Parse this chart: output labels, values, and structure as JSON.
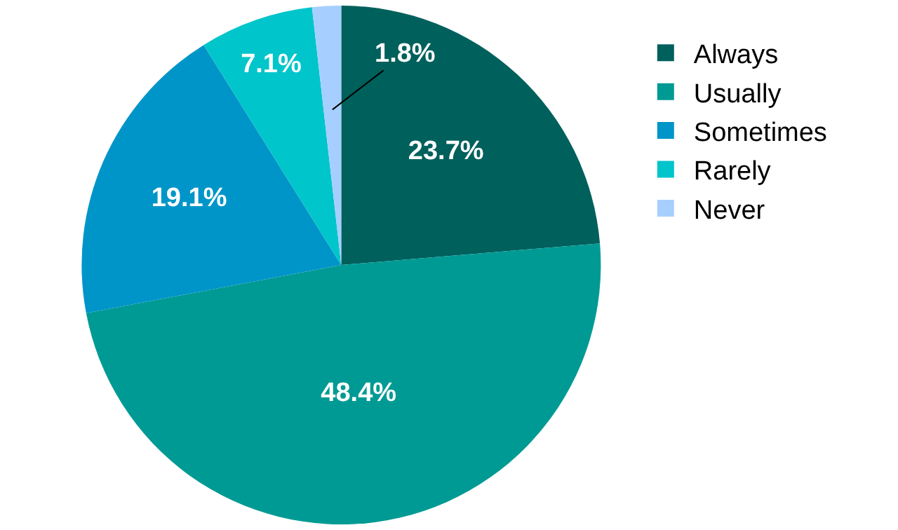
{
  "chart_data": {
    "type": "pie",
    "categories": [
      "Always",
      "Usually",
      "Sometimes",
      "Rarely",
      "Never"
    ],
    "values": [
      23.7,
      48.4,
      19.1,
      7.1,
      1.8
    ],
    "value_labels": [
      "23.7%",
      "48.4%",
      "19.1%",
      "7.1%",
      "1.8%"
    ],
    "colors": [
      "#00605c",
      "#009a94",
      "#0095c8",
      "#00c5cb",
      "#a6cfff"
    ],
    "legend": "top right"
  }
}
